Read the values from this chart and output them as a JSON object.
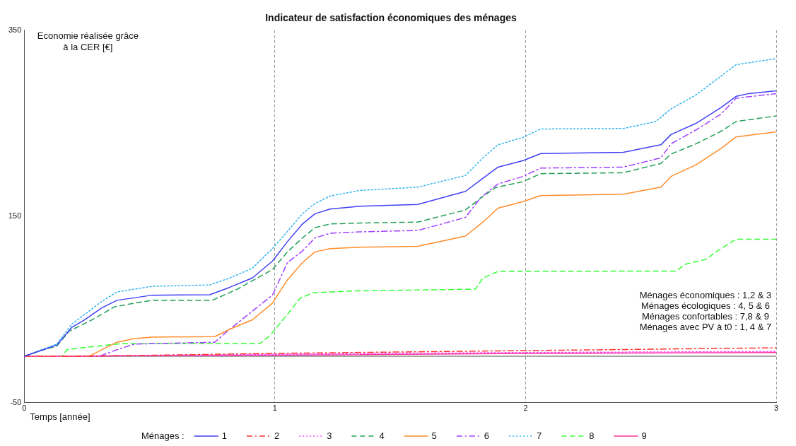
{
  "chart_data": {
    "type": "line",
    "title": "Indicateur de satisfaction économiques des ménages",
    "xlabel": "Temps [année]",
    "ylabel": "Economie réalisée grâce à la CER [€]",
    "legend_title": "Ménages :",
    "xlim": [
      0,
      3
    ],
    "xticks": [
      0,
      1,
      2,
      3
    ],
    "ylim": [
      -50,
      350
    ],
    "yticks": [
      -50,
      150,
      350
    ],
    "grid": "x",
    "legend": "bottom",
    "marker": "none",
    "ref_lines": [
      {
        "axis": "y",
        "value": 0,
        "color": "#888888"
      }
    ],
    "annotations": [
      "Ménages économiques : 1,2 & 3",
      "Ménages écologiques : 4, 5 & 6",
      "Ménages confortables : 7,8 & 9",
      "Ménages avec PV à t0 : 1, 4 & 7"
    ],
    "series": [
      {
        "name": "1",
        "color": "#4040f5",
        "line_style": "solid",
        "x": [
          0,
          0.06,
          0.13,
          0.19,
          0.24,
          0.31,
          0.37,
          0.51,
          0.74,
          0.82,
          0.91,
          0.99,
          1.05,
          1.11,
          1.16,
          1.22,
          1.34,
          1.57,
          1.76,
          1.82,
          1.89,
          1.99,
          2.06,
          2.39,
          2.54,
          2.58,
          2.68,
          2.78,
          2.84,
          2.89,
          3
        ],
        "values": [
          0,
          5.5,
          12,
          31,
          39,
          52,
          60,
          65.5,
          66,
          74,
          84,
          102,
          123,
          142,
          153,
          158,
          161,
          163,
          177,
          189,
          203,
          210,
          217.5,
          219,
          227,
          238,
          250,
          267,
          279,
          282,
          285
        ]
      },
      {
        "name": "2",
        "color": "#ff3333",
        "line_style": "dashdot",
        "x": [
          0,
          0.25,
          1,
          2,
          3
        ],
        "values": [
          0,
          0,
          3,
          6,
          9
        ]
      },
      {
        "name": "3",
        "color": "#ff44ff",
        "line_style": "dotted",
        "x": [
          0,
          0.25,
          1,
          2,
          3
        ],
        "values": [
          0,
          0,
          2,
          4,
          5
        ]
      },
      {
        "name": "4",
        "color": "#22a05a",
        "line_style": "dashed",
        "x": [
          0,
          0.06,
          0.13,
          0.18,
          0.27,
          0.36,
          0.44,
          0.51,
          0.75,
          0.85,
          0.99,
          1.05,
          1.11,
          1.16,
          1.22,
          1.34,
          1.57,
          1.76,
          1.82,
          1.88,
          1.99,
          2.06,
          2.39,
          2.54,
          2.58,
          2.68,
          2.78,
          2.84,
          3
        ],
        "values": [
          0,
          5.5,
          11,
          27,
          39,
          53,
          57,
          60,
          60,
          72,
          93,
          112,
          127,
          138,
          142,
          143,
          144,
          157,
          169.5,
          181,
          187.5,
          196,
          197,
          207,
          217,
          228,
          241.5,
          252,
          258
        ]
      },
      {
        "name": "5",
        "color": "#ff8c2a",
        "line_style": "solid",
        "x": [
          0,
          0.26,
          0.31,
          0.37,
          0.44,
          0.51,
          0.76,
          0.82,
          0.91,
          0.99,
          1.05,
          1.11,
          1.16,
          1.22,
          1.34,
          1.57,
          1.76,
          1.83,
          1.89,
          1.99,
          2.06,
          2.39,
          2.54,
          2.58,
          2.68,
          2.78,
          2.84,
          3
        ],
        "values": [
          0,
          0,
          7,
          15,
          19,
          20.5,
          21,
          29,
          39,
          57,
          82,
          100.5,
          112,
          115.5,
          117,
          118,
          129,
          144,
          159,
          166,
          172.5,
          174,
          181.5,
          193,
          205.5,
          223,
          235.5,
          241
        ]
      },
      {
        "name": "6",
        "color": "#a040ff",
        "line_style": "dashdot",
        "x": [
          0,
          0.3,
          0.37,
          0.44,
          0.76,
          0.82,
          0.99,
          1.05,
          1.11,
          1.16,
          1.22,
          1.34,
          1.57,
          1.76,
          1.82,
          1.89,
          1.99,
          2.06,
          2.39,
          2.54,
          2.58,
          2.68,
          2.78,
          2.84,
          3
        ],
        "values": [
          0,
          0,
          7,
          13,
          15,
          29,
          65.5,
          100.5,
          113,
          127,
          132,
          133.5,
          135,
          149,
          170,
          185,
          193,
          202,
          203,
          213,
          228,
          243,
          260,
          277,
          282
        ]
      },
      {
        "name": "7",
        "color": "#33b5ee",
        "line_style": "dotted",
        "x": [
          0,
          0.06,
          0.13,
          0.19,
          0.31,
          0.37,
          0.51,
          0.74,
          0.82,
          0.91,
          0.99,
          1.05,
          1.11,
          1.16,
          1.22,
          1.34,
          1.57,
          1.76,
          1.83,
          1.89,
          1.99,
          2.06,
          2.39,
          2.52,
          2.58,
          2.68,
          2.84,
          3
        ],
        "values": [
          0,
          6,
          13,
          34.5,
          59,
          69,
          75,
          76.5,
          84,
          94.5,
          115.5,
          134,
          153,
          164,
          172,
          178,
          181.5,
          194,
          213,
          227,
          235,
          244,
          244.5,
          252,
          265.5,
          280.5,
          313,
          319.5
        ]
      },
      {
        "name": "8",
        "color": "#33ff33",
        "line_style": "dashed",
        "x": [
          0,
          0.15,
          0.17,
          0.23,
          0.3,
          0.39,
          0.94,
          0.98,
          1.05,
          1.1,
          1.15,
          1.3,
          1.8,
          1.83,
          1.89,
          2.6,
          2.64,
          2.72,
          2.77,
          2.84,
          3
        ],
        "values": [
          0,
          0,
          7,
          9,
          11,
          13.5,
          13.5,
          22,
          45,
          62,
          68,
          70,
          72,
          84,
          91,
          91.5,
          99,
          104,
          114,
          125.5,
          125.5
        ]
      },
      {
        "name": "9",
        "color": "#ff3399",
        "line_style": "solid",
        "x": [
          0,
          1,
          2,
          3
        ],
        "values": [
          0,
          1,
          3,
          4
        ]
      }
    ]
  }
}
